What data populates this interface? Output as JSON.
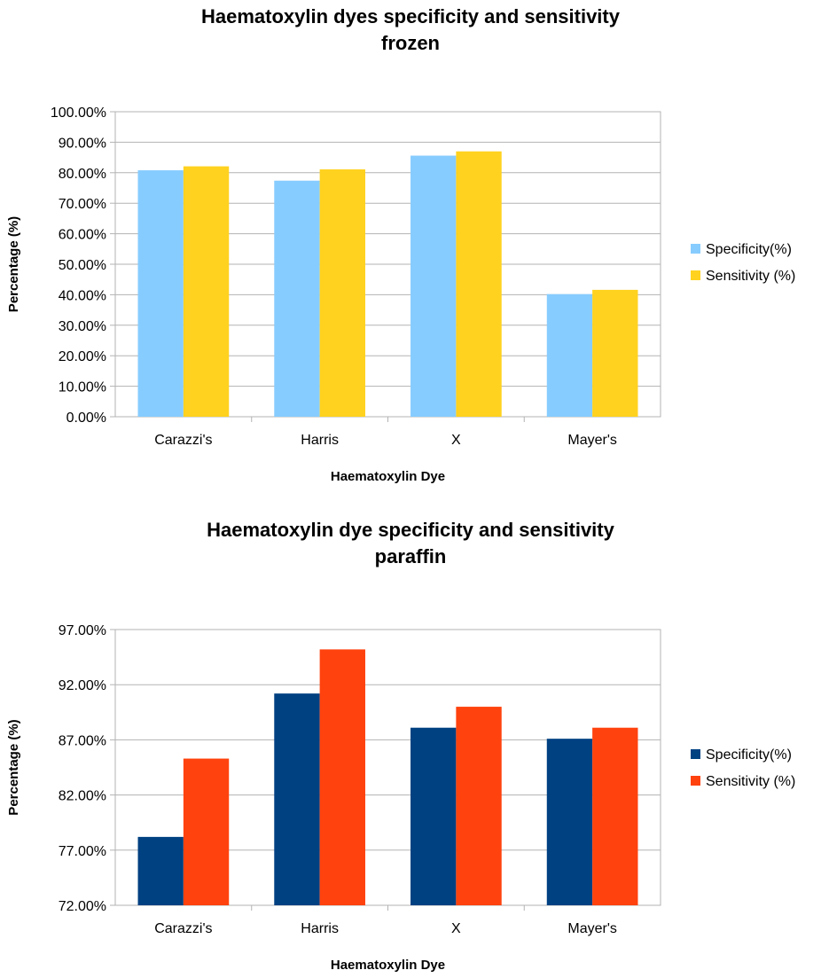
{
  "chart_data": [
    {
      "type": "bar",
      "title": "Haematoxylin  dyes specificity  and sensitivity",
      "subtitle": "frozen",
      "categories": [
        "Carazzi's",
        "Harris",
        "X",
        "Mayer's"
      ],
      "series": [
        {
          "name": "Specificity(%)",
          "values": [
            80.8,
            77.4,
            85.6,
            40.2
          ],
          "color": "#87ccff"
        },
        {
          "name": "Sensitivity (%)",
          "values": [
            82.1,
            81.1,
            87.0,
            41.6
          ],
          "color": "#ffd21f"
        }
      ],
      "xlabel": "Haematoxylin Dye",
      "ylabel": "Percentage (%)",
      "ylim": [
        0,
        100
      ],
      "yticks": [
        0,
        10,
        20,
        30,
        40,
        50,
        60,
        70,
        80,
        90,
        100
      ],
      "ytick_labels": [
        "0.00%",
        "10.00%",
        "20.00%",
        "30.00%",
        "40.00%",
        "50.00%",
        "60.00%",
        "70.00%",
        "80.00%",
        "90.00%",
        "100.00%"
      ],
      "grid": true,
      "legend": "right"
    },
    {
      "type": "bar",
      "title": "Haematoxylin  dye specificity  and sensitivity",
      "subtitle": "paraffin",
      "categories": [
        "Carazzi's",
        "Harris",
        "X",
        "Mayer's"
      ],
      "series": [
        {
          "name": "Specificity(%)",
          "values": [
            78.2,
            91.2,
            88.1,
            87.1
          ],
          "color": "#004182"
        },
        {
          "name": "Sensitivity (%)",
          "values": [
            85.3,
            95.2,
            90.0,
            88.1
          ],
          "color": "#ff420e"
        }
      ],
      "xlabel": "Haematoxylin Dye",
      "ylabel": "Percentage (%)",
      "ylim": [
        72,
        97
      ],
      "yticks": [
        72,
        77,
        82,
        87,
        92,
        97
      ],
      "ytick_labels": [
        "72.00%",
        "77.00%",
        "82.00%",
        "87.00%",
        "92.00%",
        "97.00%"
      ],
      "grid": true,
      "legend": "right"
    }
  ]
}
